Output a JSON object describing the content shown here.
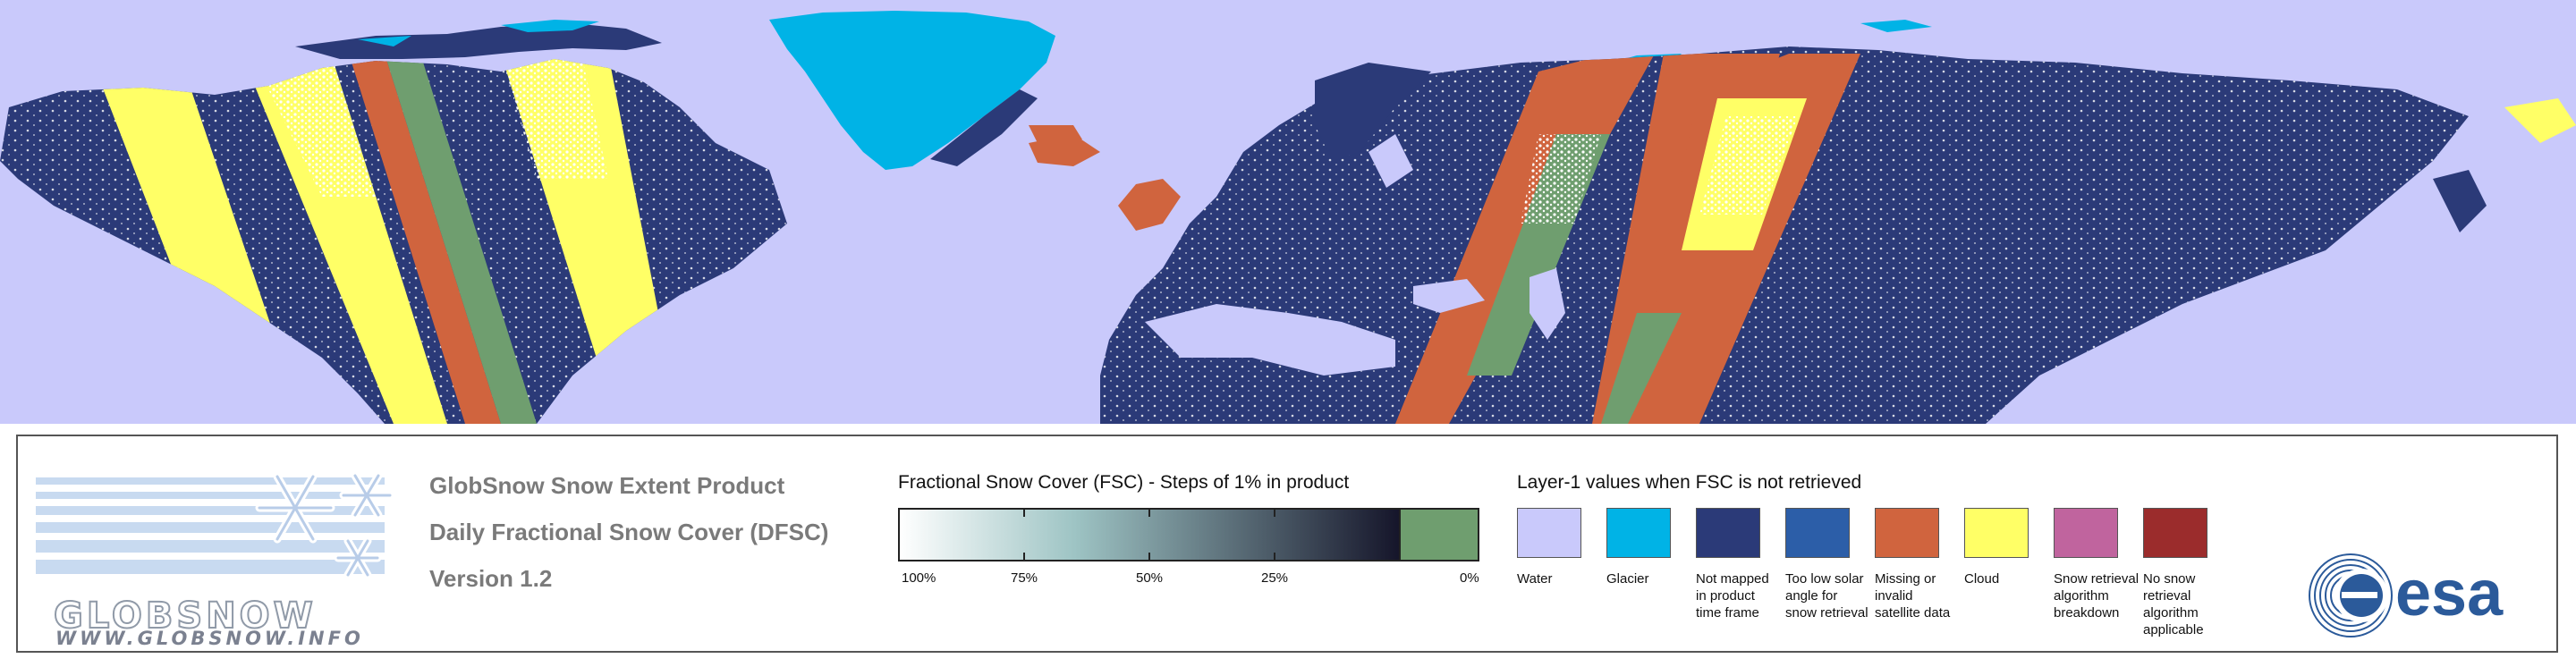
{
  "map": {
    "colors": {
      "water": "#c9c9fb",
      "glacier": "#00b3e6",
      "not_mapped": "#2b3a78",
      "too_low_sun": "#2c5ea8",
      "missing": "#d0643e",
      "cloud": "#ffff66",
      "fsc_zero": "#6f9e6f",
      "snow": "#ffffff"
    }
  },
  "logo": {
    "wordmark": "GLOBSNOW",
    "url": "WWW.GLOBSNOW.INFO"
  },
  "product": {
    "line1": "GlobSnow Snow Extent Product",
    "line2": "Daily Fractional Snow Cover (DFSC)",
    "line3": "Version 1.2"
  },
  "fsc_legend": {
    "title": "Fractional Snow Cover (FSC) - Steps of 1% in product",
    "ticks": [
      "100%",
      "75%",
      "50%",
      "25%",
      "0%"
    ],
    "gradient_start": "#ffffff",
    "gradient_mid": "#9ec4c4",
    "gradient_end": "#15152a",
    "zero_color": "#6f9e6f"
  },
  "layer1_legend": {
    "title": "Layer-1 values when FSC is not retrieved",
    "items": [
      {
        "label": "Water",
        "color": "#c9c9fb"
      },
      {
        "label": "Glacier",
        "color": "#00b3e6"
      },
      {
        "label": "Not mapped in product time frame",
        "color": "#2b3a78"
      },
      {
        "label": "Too low solar angle for snow retrieval",
        "color": "#2c5ea8"
      },
      {
        "label": "Missing or invalid satellite data",
        "color": "#d0643e"
      },
      {
        "label": "Cloud",
        "color": "#ffff66"
      },
      {
        "label": "Snow retrieval algorithm breakdown",
        "color": "#c0649e"
      },
      {
        "label": "No snow retrieval algorithm applicable",
        "color": "#9b2c2c"
      }
    ]
  },
  "esa_logo": {
    "text": "esa",
    "color": "#2b5a9a"
  }
}
